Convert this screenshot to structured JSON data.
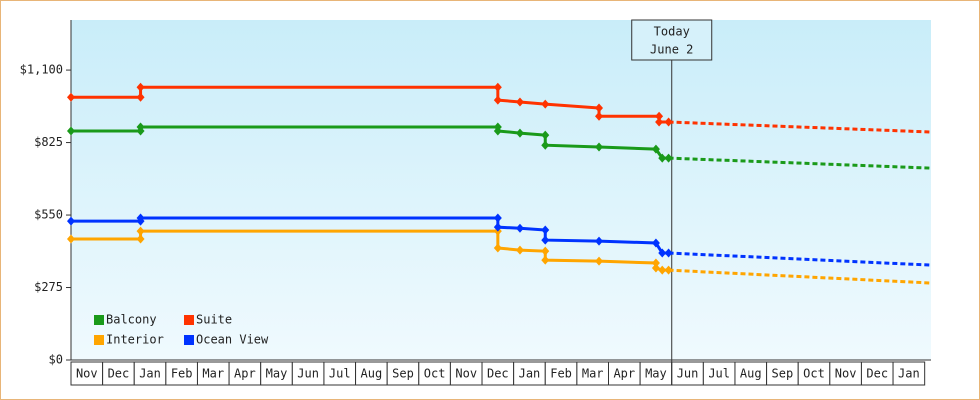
{
  "chart_data": {
    "type": "line",
    "xlim": [
      0,
      27.2
    ],
    "ylim": [
      0,
      1290
    ],
    "yticks": [
      {
        "value": 0,
        "label": "$0"
      },
      {
        "value": 275,
        "label": "$275"
      },
      {
        "value": 550,
        "label": "$550"
      },
      {
        "value": 825,
        "label": "$825"
      },
      {
        "value": 1100,
        "label": "$1,100"
      }
    ],
    "categories": [
      "Nov",
      "Dec",
      "Jan",
      "Feb",
      "Mar",
      "Apr",
      "May",
      "Jun",
      "Jul",
      "Aug",
      "Sep",
      "Oct",
      "Nov",
      "Dec",
      "Jan",
      "Feb",
      "Mar",
      "Apr",
      "May",
      "Jun",
      "Jul",
      "Aug",
      "Sep",
      "Oct",
      "Nov",
      "Dec",
      "Jan"
    ],
    "annotation": {
      "x": 19.0,
      "lines": [
        "Today",
        "June 2"
      ]
    },
    "series": [
      {
        "name": "Balcony",
        "color": "#1a9a1a",
        "x": [
          0,
          2.2,
          2.2,
          13.5,
          13.5,
          14.2,
          15.0,
          15.0,
          16.7,
          18.5,
          18.7,
          18.9
        ],
        "values": [
          869,
          869,
          884,
          884,
          869,
          861,
          853,
          815,
          808,
          800,
          766,
          766
        ],
        "forecast": {
          "x": [
            18.9,
            27.2
          ],
          "values": [
            766,
            728
          ]
        }
      },
      {
        "name": "Suite",
        "color": "#ff3300",
        "x": [
          0,
          2.2,
          2.2,
          13.5,
          13.5,
          14.2,
          15.0,
          16.7,
          16.7,
          18.6,
          18.6,
          18.9
        ],
        "values": [
          997,
          997,
          1035,
          1035,
          986,
          979,
          971,
          956,
          925,
          925,
          903,
          903
        ],
        "forecast": {
          "x": [
            18.9,
            27.2
          ],
          "values": [
            903,
            865
          ]
        }
      },
      {
        "name": "Interior",
        "color": "#ffa500",
        "x": [
          0,
          2.2,
          2.2,
          13.5,
          13.5,
          14.2,
          15.0,
          15.0,
          16.7,
          18.5,
          18.5,
          18.7,
          18.9
        ],
        "values": [
          459,
          459,
          489,
          489,
          425,
          417,
          413,
          379,
          375,
          368,
          349,
          341,
          341
        ],
        "forecast": {
          "x": [
            18.9,
            27.2
          ],
          "values": [
            341,
            292
          ]
        }
      },
      {
        "name": "Ocean View",
        "color": "#0033ff",
        "x": [
          0,
          2.2,
          2.2,
          13.5,
          13.5,
          14.2,
          15.0,
          15.0,
          16.7,
          18.5,
          18.7,
          18.9
        ],
        "values": [
          527,
          527,
          539,
          539,
          504,
          500,
          493,
          455,
          451,
          444,
          406,
          406
        ],
        "forecast": {
          "x": [
            18.9,
            27.2
          ],
          "values": [
            406,
            360
          ]
        }
      }
    ]
  }
}
